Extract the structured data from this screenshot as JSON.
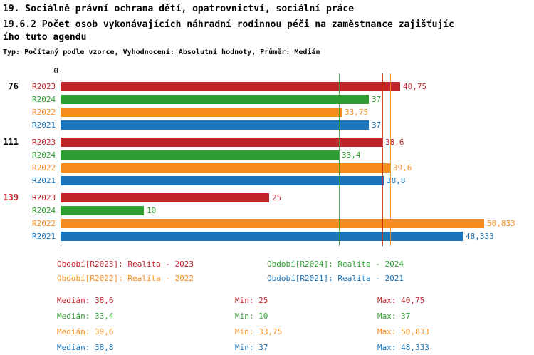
{
  "header": {
    "line1": "19. Sociálně právní ochrana dětí, opatrovnictví, sociální práce",
    "line2": "19.6.2 Počet osob vykonávajících náhradní rodinnou péči na zaměstnance zajišťujíc",
    "line3": "ího tuto agendu",
    "meta": "Typ: Počítaný podle vzorce, Vyhodnocení: Absolutní hodnoty, Průměr: Medián"
  },
  "colors": {
    "R2023": "#c2242c",
    "R2024": "#2f9e32",
    "R2022": "#f78c1e",
    "R2021": "#1b75bc"
  },
  "chart_data": {
    "type": "bar",
    "orientation": "horizontal",
    "axis_origin_label": "0",
    "xlim": [
      0,
      55
    ],
    "grid": false,
    "groups": [
      {
        "label": "76",
        "label_color": "#000000",
        "bars": [
          {
            "series": "R2023",
            "value": 40.75,
            "value_label": "40,75"
          },
          {
            "series": "R2024",
            "value": 37,
            "value_label": "37"
          },
          {
            "series": "R2022",
            "value": 33.75,
            "value_label": "33,75"
          },
          {
            "series": "R2021",
            "value": 37,
            "value_label": "37"
          }
        ]
      },
      {
        "label": "111",
        "label_color": "#000000",
        "bars": [
          {
            "series": "R2023",
            "value": 38.6,
            "value_label": "38,6"
          },
          {
            "series": "R2024",
            "value": 33.4,
            "value_label": "33,4"
          },
          {
            "series": "R2022",
            "value": 39.6,
            "value_label": "39,6"
          },
          {
            "series": "R2021",
            "value": 38.8,
            "value_label": "38,8"
          }
        ]
      },
      {
        "label": "139",
        "label_color": "#c2242c",
        "bars": [
          {
            "series": "R2023",
            "value": 25,
            "value_label": "25"
          },
          {
            "series": "R2024",
            "value": 10,
            "value_label": "10"
          },
          {
            "series": "R2022",
            "value": 50.833,
            "value_label": "50,833"
          },
          {
            "series": "R2021",
            "value": 48.333,
            "value_label": "48,333"
          }
        ]
      }
    ],
    "median_lines": [
      {
        "series": "R2023",
        "value": 38.6
      },
      {
        "series": "R2024",
        "value": 33.4
      },
      {
        "series": "R2022",
        "value": 39.6
      },
      {
        "series": "R2021",
        "value": 38.8
      }
    ]
  },
  "legend": [
    {
      "series": "R2023",
      "label": "Období[R2023]: Realita - 2023"
    },
    {
      "series": "R2024",
      "label": "Období[R2024]: Realita - 2024"
    },
    {
      "series": "R2022",
      "label": "Období[R2022]: Realita - 2022"
    },
    {
      "series": "R2021",
      "label": "Období[R2021]: Realita - 2021"
    }
  ],
  "stats": [
    {
      "series": "R2023",
      "median": "Medián: 38,6",
      "min": "Min: 25",
      "max": "Max: 40,75"
    },
    {
      "series": "R2024",
      "median": "Medián: 33,4",
      "min": "Min: 10",
      "max": "Max: 37"
    },
    {
      "series": "R2022",
      "median": "Medián: 39,6",
      "min": "Min: 33,75",
      "max": "Max: 50,833"
    },
    {
      "series": "R2021",
      "median": "Medián: 38,8",
      "min": "Min: 37",
      "max": "Max: 48,333"
    }
  ]
}
